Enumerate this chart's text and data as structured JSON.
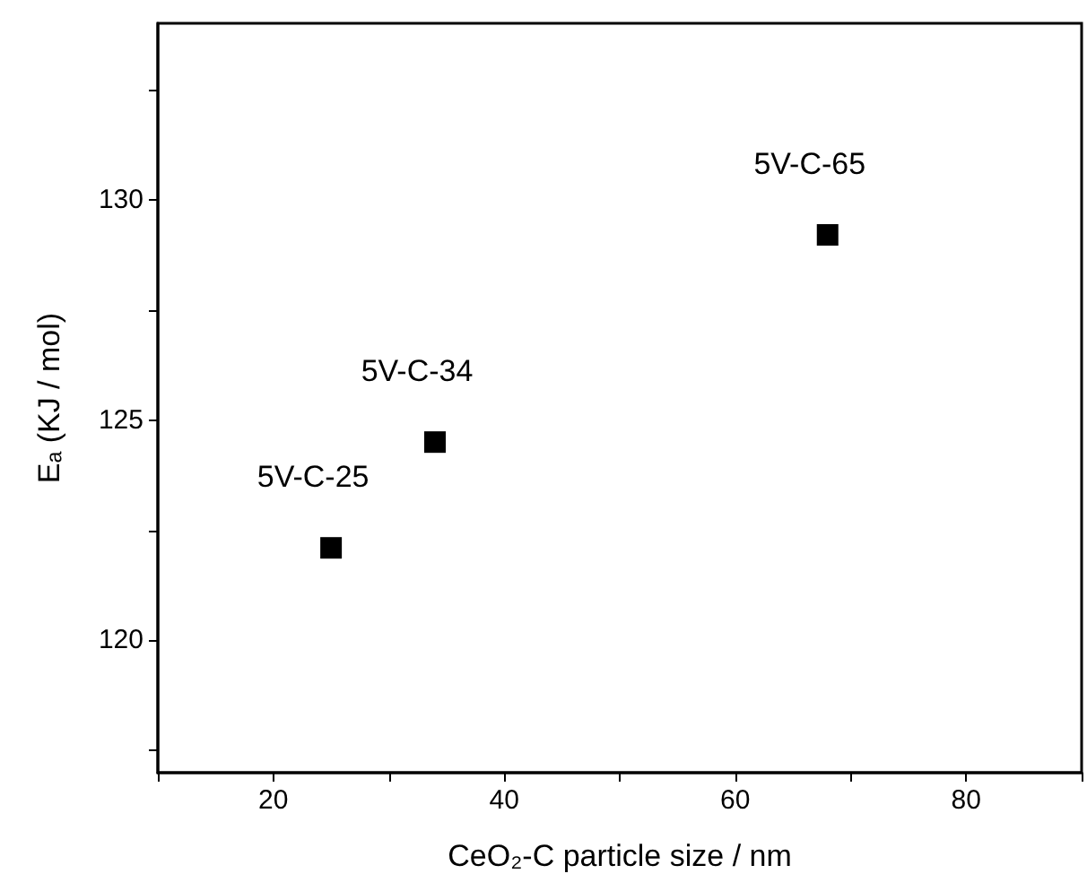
{
  "chart_data": {
    "type": "scatter",
    "xlabel": "CeO₂-C particle size / nm",
    "ylabel": "Eₐ (KJ / mol)",
    "x": [
      25,
      34,
      68
    ],
    "values": [
      122.1,
      124.5,
      129.2
    ],
    "color": "#000000",
    "marker": "square",
    "xlim": [
      10,
      90
    ],
    "xticks": [
      {
        "value": 10,
        "label": null
      },
      20,
      {
        "value": 30,
        "label": null
      },
      40,
      {
        "value": 50,
        "label": null
      },
      60,
      {
        "value": 70,
        "label": null
      },
      80,
      {
        "value": 90,
        "label": null
      }
    ],
    "ylim": [
      117,
      134
    ],
    "yticks": [
      {
        "value": 117.5,
        "label": null
      },
      120,
      {
        "value": 122.5,
        "label": null
      },
      125,
      {
        "value": 127.5,
        "label": null
      },
      130,
      {
        "value": 132.5,
        "label": null
      }
    ],
    "annotations": [
      {
        "text": "5V-C-25",
        "x": 25,
        "y": 122.1
      },
      {
        "text": "5V-C-34",
        "x": 34,
        "y": 124.5
      },
      {
        "text": "5V-C-65",
        "x": 68,
        "y": 129.2
      }
    ],
    "grid": false
  }
}
